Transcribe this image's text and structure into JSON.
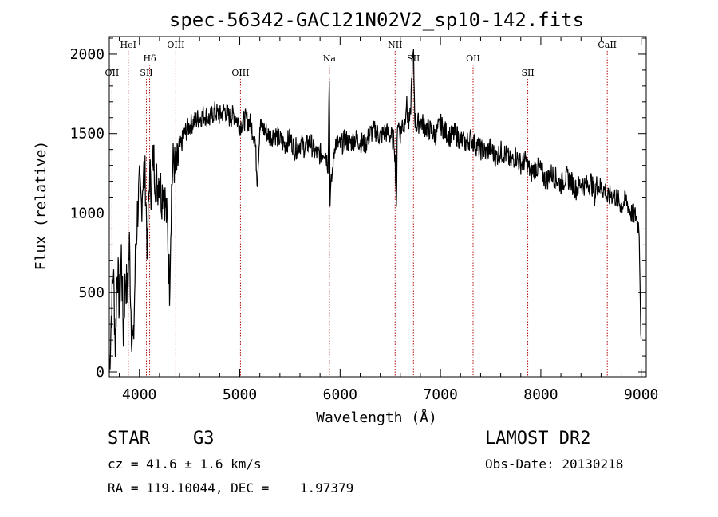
{
  "chart_data": {
    "type": "line",
    "title": "spec-56342-GAC121N02V2_sp10-142.fits",
    "xlabel": "Wavelength (Å)",
    "ylabel": "Flux (relative)",
    "xlim": [
      3700,
      9050
    ],
    "ylim": [
      -30,
      2110
    ],
    "xticks": [
      4000,
      5000,
      6000,
      7000,
      8000,
      9000
    ],
    "yticks": [
      0,
      500,
      1000,
      1500,
      2000
    ],
    "xtick_labels": [
      "4000",
      "5000",
      "6000",
      "7000",
      "8000",
      "9000"
    ],
    "ytick_labels": [
      "0",
      "500",
      "1000",
      "1500",
      "2000"
    ],
    "lines": [
      {
        "label": "OII",
        "wavelength": 3727,
        "row": 2
      },
      {
        "label": "HeI",
        "wavelength": 3889,
        "row": 0
      },
      {
        "label": "SII",
        "wavelength": 4070,
        "row": 2
      },
      {
        "label": "Hδ",
        "wavelength": 4102,
        "row": 1
      },
      {
        "label": "OIII",
        "wavelength": 4363,
        "row": 0
      },
      {
        "label": "OIII",
        "wavelength": 5007,
        "row": 2
      },
      {
        "label": "Na",
        "wavelength": 5893,
        "row": 1
      },
      {
        "label": "NII",
        "wavelength": 6548,
        "row": 0
      },
      {
        "label": "SII",
        "wavelength": 6731,
        "row": 1
      },
      {
        "label": "OII",
        "wavelength": 7325,
        "row": 1
      },
      {
        "label": "SII",
        "wavelength": 7870,
        "row": 2
      },
      {
        "label": "CaII",
        "wavelength": 8662,
        "row": 0
      }
    ],
    "series": [
      {
        "x": [
          3700,
          3720,
          3740,
          3760,
          3780,
          3800,
          3820,
          3840,
          3860,
          3880,
          3900,
          3920,
          3940,
          3960,
          3980,
          4000,
          4020,
          4040,
          4060,
          4080,
          4100,
          4120,
          4140,
          4160,
          4180,
          4200,
          4220,
          4240,
          4260,
          4280,
          4300,
          4320,
          4340,
          4360,
          4380,
          4400,
          4450,
          4500,
          4550,
          4600,
          4650,
          4700,
          4750,
          4800,
          4850,
          4900,
          4950,
          5000,
          5050,
          5100,
          5150,
          5175,
          5200,
          5250,
          5300,
          5350,
          5400,
          5450,
          5500,
          5550,
          5600,
          5650,
          5700,
          5750,
          5800,
          5850,
          5880,
          5893,
          5900,
          5950,
          6000,
          6050,
          6100,
          6150,
          6200,
          6250,
          6300,
          6350,
          6400,
          6450,
          6500,
          6540,
          6550,
          6563,
          6570,
          6600,
          6620,
          6640,
          6660,
          6680,
          6700,
          6716,
          6731,
          6745,
          6760,
          6800,
          6850,
          6900,
          6950,
          7000,
          7050,
          7100,
          7150,
          7200,
          7250,
          7300,
          7350,
          7400,
          7450,
          7500,
          7550,
          7600,
          7650,
          7700,
          7750,
          7800,
          7850,
          7900,
          7950,
          8000,
          8050,
          8100,
          8150,
          8200,
          8250,
          8300,
          8350,
          8400,
          8450,
          8500,
          8542,
          8550,
          8600,
          8650,
          8662,
          8700,
          8750,
          8800,
          8850,
          8900,
          8950,
          8980,
          8990,
          9000
        ],
        "y": [
          0,
          350,
          650,
          180,
          700,
          400,
          750,
          250,
          600,
          500,
          800,
          300,
          150,
          700,
          1000,
          1150,
          1050,
          1280,
          1200,
          750,
          1250,
          1150,
          1350,
          1220,
          1180,
          1250,
          1100,
          1200,
          1050,
          900,
          550,
          1150,
          1350,
          1250,
          1300,
          1400,
          1500,
          1550,
          1580,
          1600,
          1620,
          1590,
          1640,
          1610,
          1650,
          1600,
          1620,
          1550,
          1590,
          1570,
          1480,
          1200,
          1550,
          1520,
          1480,
          1500,
          1460,
          1430,
          1470,
          1400,
          1440,
          1410,
          1450,
          1380,
          1370,
          1400,
          1300,
          1900,
          1100,
          1450,
          1420,
          1460,
          1440,
          1470,
          1450,
          1430,
          1500,
          1520,
          1480,
          1510,
          1490,
          1450,
          1300,
          1000,
          1600,
          1500,
          1560,
          1540,
          1700,
          1550,
          1600,
          1900,
          2000,
          1600,
          1550,
          1580,
          1540,
          1520,
          1490,
          1560,
          1510,
          1480,
          1500,
          1460,
          1440,
          1470,
          1430,
          1400,
          1380,
          1410,
          1350,
          1390,
          1370,
          1320,
          1360,
          1310,
          1330,
          1250,
          1290,
          1270,
          1200,
          1250,
          1220,
          1180,
          1230,
          1200,
          1150,
          1190,
          1170,
          1200,
          1100,
          1180,
          1160,
          1140,
          1080,
          1120,
          1100,
          1050,
          1080,
          1000,
          980,
          900,
          500,
          150
        ]
      }
    ],
    "grid": false
  },
  "info": {
    "object_class": "STAR",
    "subclass": "G3",
    "survey": "LAMOST DR2",
    "redshift": "cz = 41.6 ± 1.6 km/s",
    "obs_date": "Obs-Date: 20130218",
    "coords": "RA = 119.10044, DEC =    1.97379"
  }
}
